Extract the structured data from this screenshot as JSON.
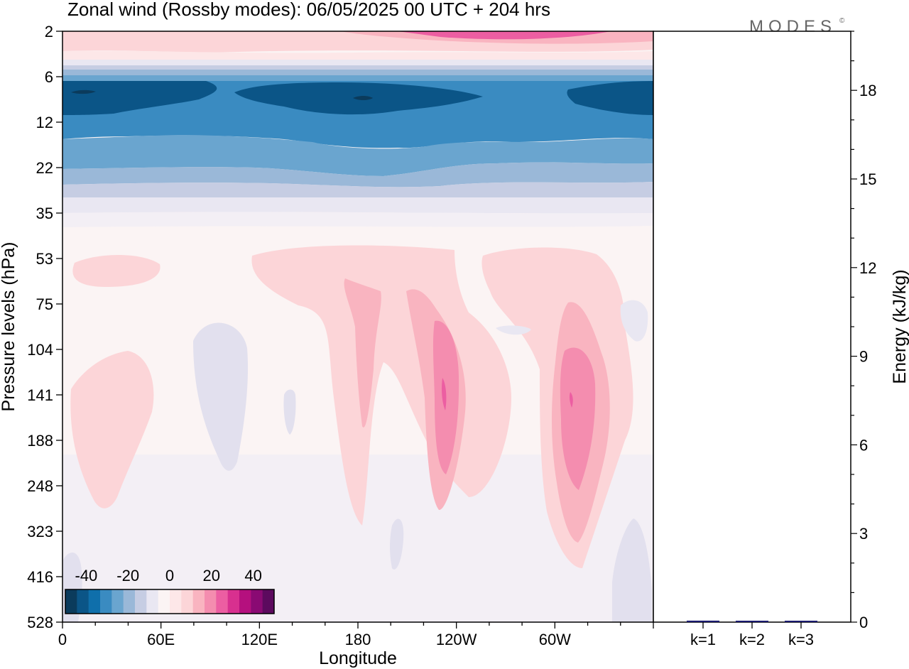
{
  "chart_data": {
    "type": "heatmap",
    "title": "Zonal wind (Rossby modes):  06/05/2025  00 UTC  + 204 hrs",
    "brand": "MODES",
    "brand_mark": "©",
    "xlabel": "Longitude",
    "ylabel": "Pressure levels (hPa)",
    "y2label": "Energy (kJ/kg)",
    "x_ticks": [
      "0",
      "60E",
      "120E",
      "180",
      "120W",
      "60W"
    ],
    "x_tick_degrees": [
      0,
      60,
      120,
      180,
      240,
      300
    ],
    "x_range": [
      0,
      360
    ],
    "y_ticks": [
      "2",
      "6",
      "12",
      "22",
      "35",
      "53",
      "75",
      "104",
      "141",
      "188",
      "248",
      "323",
      "416",
      "528"
    ],
    "y_scale": "reversed pressure levels",
    "y2_ticks": [
      "0",
      "3",
      "6",
      "9",
      "12",
      "15",
      "18"
    ],
    "y2_tick_values": [
      0,
      3,
      6,
      9,
      12,
      15,
      18
    ],
    "y2_range": [
      0,
      20
    ],
    "colorbar": {
      "tick_labels": [
        "-40",
        "-20",
        "0",
        "20",
        "40"
      ],
      "tick_values": [
        -40,
        -20,
        0,
        20,
        40
      ],
      "range": [
        -50,
        50
      ],
      "colors": [
        "#0b3b5c",
        "#0b5587",
        "#0f6fab",
        "#3a8bc1",
        "#6aa5cf",
        "#9ab8d8",
        "#c6cde3",
        "#e9e7f2",
        "#fbf4f4",
        "#fde7e8",
        "#fcd5d8",
        "#f9b4c0",
        "#f48daf",
        "#ec5ea2",
        "#d8308f",
        "#b5107e",
        "#8a0a73",
        "#5c0a5e"
      ]
    },
    "energy_series": {
      "categories": [
        "k=1",
        "k=2",
        "k=3"
      ],
      "values": [
        0.05,
        0.04,
        0.01
      ],
      "color": "#1a1a6e"
    },
    "zonal_wind_bands": [
      {
        "level": "2",
        "value": 12
      },
      {
        "level": "3",
        "value": 4
      },
      {
        "level": "4",
        "value": -6
      },
      {
        "level": "5",
        "value": -14
      },
      {
        "level": "6",
        "value": -24
      },
      {
        "level": "8",
        "value": -34
      },
      {
        "level": "10",
        "value": -36
      },
      {
        "level": "12",
        "value": -33
      },
      {
        "level": "17",
        "value": -25
      },
      {
        "level": "22",
        "value": -18
      },
      {
        "level": "28",
        "value": -12
      },
      {
        "level": "35",
        "value": -6
      },
      {
        "level": "45",
        "value": 2
      },
      {
        "level": "528",
        "value": 1
      }
    ],
    "zonal_wind_features": [
      {
        "lon": 10,
        "level": "8",
        "value": -40
      },
      {
        "lon": 185,
        "level": "9",
        "value": -40
      },
      {
        "lon": 30,
        "level": "53",
        "value": 6
      },
      {
        "lon": 230,
        "level": "53",
        "value": 7
      },
      {
        "lon": 300,
        "level": "53",
        "value": 7
      },
      {
        "lon": 40,
        "level": "141",
        "value": 8
      },
      {
        "lon": 100,
        "level": "141",
        "value": -3
      },
      {
        "lon": 180,
        "level": "141",
        "value": 12
      },
      {
        "lon": 235,
        "level": "141",
        "value": 24
      },
      {
        "lon": 310,
        "level": "141",
        "value": 24
      },
      {
        "lon": 205,
        "level": "323",
        "value": -3
      },
      {
        "lon": 350,
        "level": "416",
        "value": -4
      }
    ]
  }
}
